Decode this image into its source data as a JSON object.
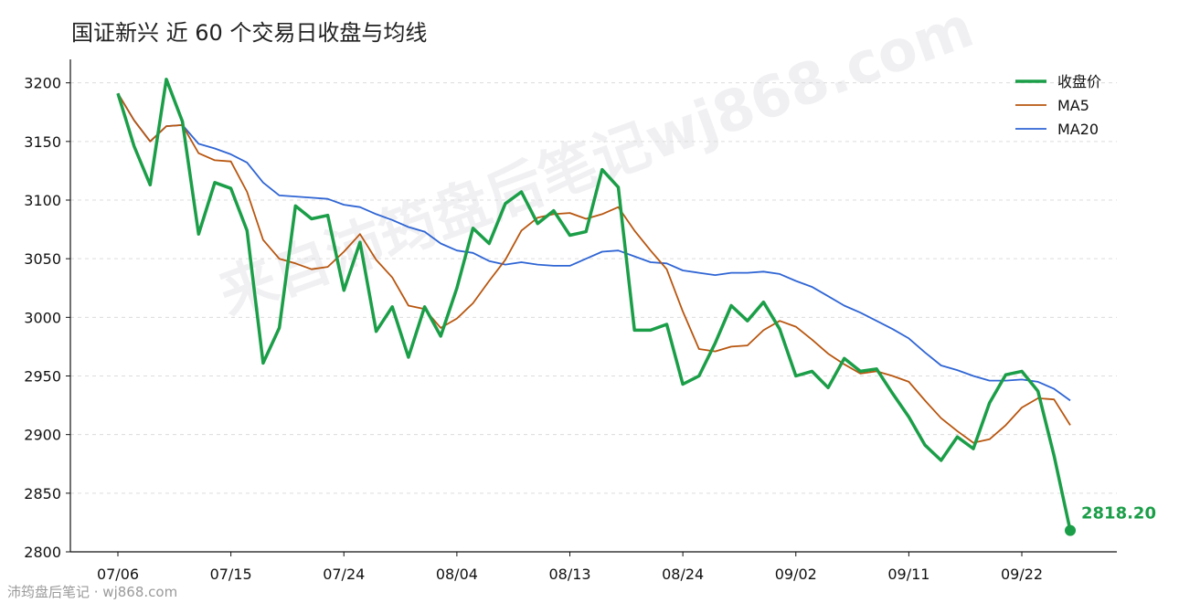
{
  "chart_data": {
    "type": "line",
    "title": "国证新兴 近 60 个交易日收盘与均线",
    "ylim": [
      2800,
      3220
    ],
    "y_ticks": [
      2800,
      2850,
      2900,
      2950,
      3000,
      3050,
      3100,
      3150,
      3200
    ],
    "x_tick_labels": [
      "07/06",
      "07/15",
      "07/24",
      "08/04",
      "08/13",
      "08/24",
      "09/02",
      "09/11",
      "09/22"
    ],
    "x_tick_index": [
      0,
      7,
      14,
      21,
      28,
      35,
      42,
      49,
      56
    ],
    "grid": "horizontal-dashed",
    "legend_position": "top-right",
    "series": [
      {
        "name": "收盘价",
        "color": "#1b9e48",
        "values": [
          3191,
          3146,
          3113,
          3203,
          3167,
          3071,
          3115,
          3110,
          3074,
          2961,
          2991,
          3095,
          3084,
          3087,
          3023,
          3064,
          2988,
          3009,
          2966,
          3009,
          2984,
          3025,
          3076,
          3063,
          3097,
          3107,
          3080,
          3091,
          3070,
          3073,
          3126,
          3111,
          2989,
          2989,
          2994,
          2943,
          2950,
          2978,
          3010,
          2997,
          3013,
          2990,
          2950,
          2954,
          2940,
          2965,
          2954,
          2956,
          2935,
          2915,
          2891,
          2878,
          2898,
          2888,
          2927,
          2951,
          2954,
          2937,
          2882,
          2818.2
        ]
      },
      {
        "name": "MA5",
        "color": "#b8560f",
        "values": [
          3191,
          3168,
          3150,
          3163,
          3164,
          3140,
          3134,
          3133,
          3107,
          3066,
          3050,
          3046,
          3041,
          3043,
          3056,
          3071,
          3049,
          3034,
          3010,
          3007,
          2991,
          2999,
          3012,
          3031,
          3049,
          3074,
          3085,
          3088,
          3089,
          3084,
          3088,
          3094,
          3074,
          3057,
          3041,
          3005,
          2973,
          2971,
          2975,
          2976,
          2989,
          2997,
          2992,
          2981,
          2969,
          2960,
          2952,
          2954,
          2950,
          2945,
          2929,
          2914,
          2903,
          2893,
          2896,
          2908,
          2923,
          2931,
          2930,
          2908
        ]
      },
      {
        "name": "MA20",
        "color": "#2f65d4",
        "values": [
          3191,
          3168,
          3150,
          3163,
          3164,
          3148,
          3144,
          3139,
          3132,
          3115,
          3104,
          3103,
          3102,
          3101,
          3096,
          3094,
          3088,
          3083,
          3077,
          3073,
          3063,
          3057,
          3055,
          3048,
          3045,
          3047,
          3045,
          3044,
          3044,
          3050,
          3056,
          3057,
          3052,
          3047,
          3046,
          3040,
          3038,
          3036,
          3038,
          3038,
          3039,
          3037,
          3031,
          3026,
          3018,
          3010,
          3004,
          2997,
          2990,
          2982,
          2970,
          2959,
          2955,
          2950,
          2946,
          2946,
          2947,
          2945,
          2939,
          2929
        ]
      }
    ],
    "last_value_label": "2818.20"
  },
  "watermark": "来自沛筠盘后笔记wj868.com",
  "footer": "沛筠盘后笔记 · wj868.com"
}
